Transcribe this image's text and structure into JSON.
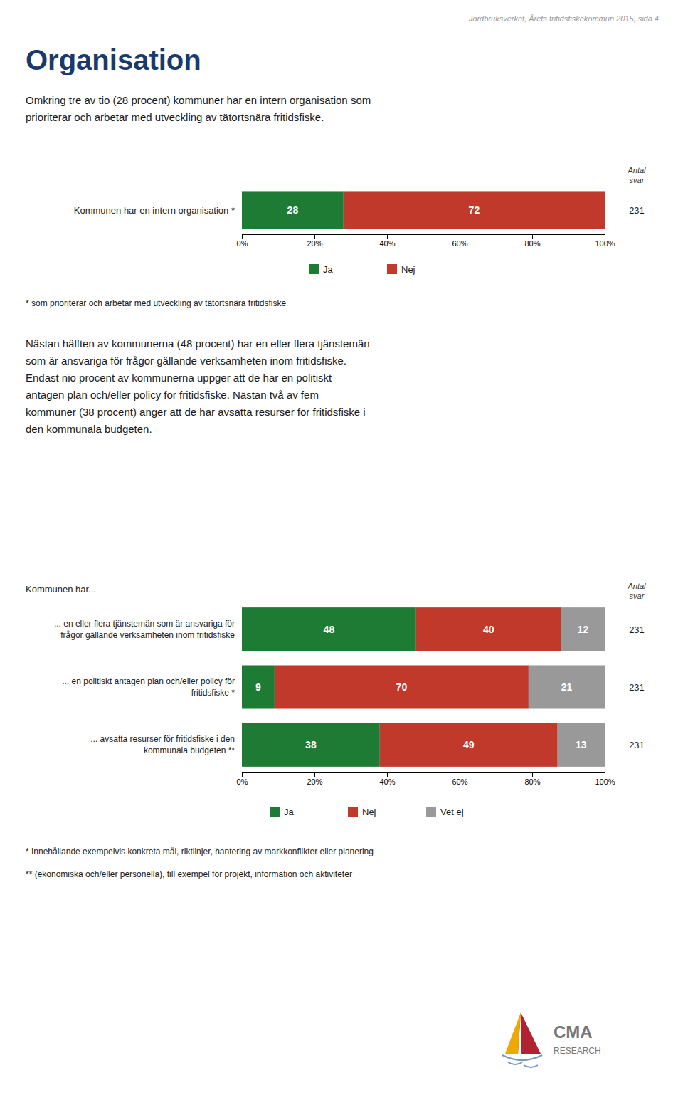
{
  "page_header": "Jordbruksverket, Årets fritidsfiskekommun 2015, sida 4",
  "title": "Organisation",
  "intro_text": "Omkring tre av tio (28 procent) kommuner har en intern organisation som\nprioriterar och arbetar med utveckling av tätortsnära fritidsfiske.",
  "middle_text": "Nästan hälften av kommunerna (48 procent) har en eller flera tjänstemän\nsom är ansvariga för frågor gällande verksamheten inom fritidsfiske.\nEndast nio procent av kommunerna uppger att de har en politiskt\nantagen plan och/eller policy för fritidsfiske. Nästan två av fem\nkommuner (38 procent) anger att de har avsatta resurser för fritidsfiske i\nden kommunala budgeten.",
  "logo_text": [
    "CMA",
    "RESEARCH"
  ],
  "logo_colors": [
    "#f0a800",
    "#b22234",
    "#7799bb"
  ],
  "chart_data": [
    {
      "type": "bar",
      "orientation": "horizontal",
      "stacked": true,
      "data_labels": true,
      "grid": false,
      "legend": "bottom",
      "categories": [
        "Kommunen har en intern organisation *"
      ],
      "series": [
        {
          "name": "Ja",
          "color": "#1e7b34",
          "values": [
            28
          ]
        },
        {
          "name": "Nej",
          "color": "#c0392b",
          "values": [
            72
          ]
        }
      ],
      "xlim": [
        0,
        100
      ],
      "xticks": [
        {
          "value": 0,
          "label": "0%"
        },
        {
          "value": 20,
          "label": "20%"
        },
        {
          "value": 40,
          "label": "40%"
        },
        {
          "value": 60,
          "label": "60%"
        },
        {
          "value": 80,
          "label": "80%"
        },
        {
          "value": 100,
          "label": "100%"
        }
      ],
      "count_header": "Antal\nsvar",
      "counts": [
        231
      ],
      "footnotes": [
        "* som prioriterar och arbetar med utveckling av tätortsnära fritidsfiske"
      ]
    },
    {
      "type": "bar",
      "title": "Kommunen har...",
      "orientation": "horizontal",
      "stacked": true,
      "data_labels": true,
      "grid": false,
      "legend": "bottom",
      "categories": [
        "... en eller flera tjänstemän som är ansvariga för\nfrågor gällande verksamheten inom fritidsfiske",
        "... en politiskt antagen plan och/eller policy för\nfritidsfiske *",
        "... avsatta resurser för fritidsfiske i den\nkommunala budgeten **"
      ],
      "series": [
        {
          "name": "Ja",
          "color": "#1e7b34",
          "values": [
            48,
            9,
            38
          ]
        },
        {
          "name": "Nej",
          "color": "#c0392b",
          "values": [
            40,
            70,
            49
          ]
        },
        {
          "name": "Vet ej",
          "color": "#999999",
          "values": [
            12,
            21,
            13
          ]
        }
      ],
      "xlim": [
        0,
        100
      ],
      "xticks": [
        {
          "value": 0,
          "label": "0%"
        },
        {
          "value": 20,
          "label": "20%"
        },
        {
          "value": 40,
          "label": "40%"
        },
        {
          "value": 60,
          "label": "60%"
        },
        {
          "value": 80,
          "label": "80%"
        },
        {
          "value": 100,
          "label": "100%"
        }
      ],
      "count_header": "Antal\nsvar",
      "counts": [
        231,
        231,
        231
      ],
      "footnotes": [
        "* Innehållande exempelvis konkreta mål, riktlinjer, hantering av markkonflikter eller planering",
        "** (ekonomiska och/eller personella), till exempel för projekt, information och aktiviteter"
      ]
    }
  ]
}
